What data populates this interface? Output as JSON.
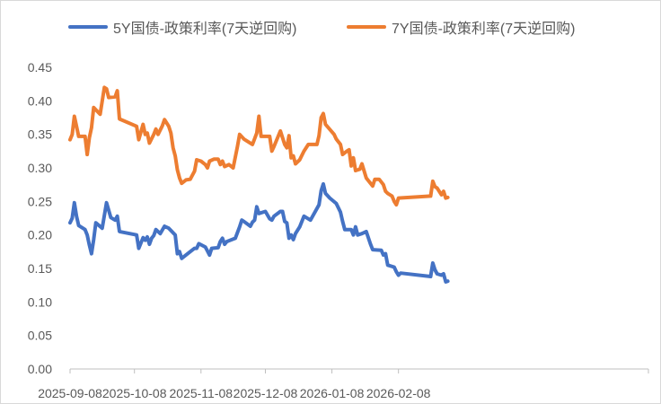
{
  "chart_data": {
    "type": "line",
    "title": "",
    "xlabel": "",
    "ylabel": "",
    "ylim": [
      0,
      0.45
    ],
    "y_ticks": [
      "0.00",
      "0.05",
      "0.10",
      "0.15",
      "0.20",
      "0.25",
      "0.30",
      "0.35",
      "0.40",
      "0.45"
    ],
    "x_ticks": [
      "2025-09-08",
      "2025-10-08",
      "2025-11-08",
      "2025-12-08",
      "2026-01-08",
      "2026-02-08"
    ],
    "xlim": [
      "2025-09-08",
      "2026-03-03"
    ],
    "grid": false,
    "legend_position": "top",
    "series": [
      {
        "name": "5Y国债-政策利率(7天逆回购)",
        "color": "#4472c4",
        "points": [
          [
            "2025-09-08",
            0.218
          ],
          [
            "2025-09-09",
            0.225
          ],
          [
            "2025-09-10",
            0.248
          ],
          [
            "2025-09-11",
            0.228
          ],
          [
            "2025-09-12",
            0.214
          ],
          [
            "2025-09-15",
            0.208
          ],
          [
            "2025-09-16",
            0.2
          ],
          [
            "2025-09-17",
            0.185
          ],
          [
            "2025-09-18",
            0.172
          ],
          [
            "2025-09-19",
            0.193
          ],
          [
            "2025-09-20",
            0.218
          ],
          [
            "2025-09-23",
            0.21
          ],
          [
            "2025-09-25",
            0.248
          ],
          [
            "2025-09-27",
            0.226
          ],
          [
            "2025-09-29",
            0.222
          ],
          [
            "2025-09-30",
            0.228
          ],
          [
            "2025-10-01",
            0.205
          ],
          [
            "2025-10-09",
            0.2
          ],
          [
            "2025-10-10",
            0.18
          ],
          [
            "2025-10-12",
            0.196
          ],
          [
            "2025-10-13",
            0.192
          ],
          [
            "2025-10-14",
            0.197
          ],
          [
            "2025-10-15",
            0.186
          ],
          [
            "2025-10-16",
            0.195
          ],
          [
            "2025-10-17",
            0.199
          ],
          [
            "2025-10-18",
            0.208
          ],
          [
            "2025-10-20",
            0.202
          ],
          [
            "2025-10-22",
            0.213
          ],
          [
            "2025-10-24",
            0.21
          ],
          [
            "2025-10-27",
            0.2
          ],
          [
            "2025-10-28",
            0.172
          ],
          [
            "2025-10-29",
            0.175
          ],
          [
            "2025-10-30",
            0.165
          ],
          [
            "2025-11-03",
            0.175
          ],
          [
            "2025-11-05",
            0.18
          ],
          [
            "2025-11-06",
            0.18
          ],
          [
            "2025-11-07",
            0.187
          ],
          [
            "2025-11-10",
            0.182
          ],
          [
            "2025-11-11",
            0.176
          ],
          [
            "2025-11-12",
            0.17
          ],
          [
            "2025-11-13",
            0.18
          ],
          [
            "2025-11-16",
            0.181
          ],
          [
            "2025-11-17",
            0.19
          ],
          [
            "2025-11-18",
            0.195
          ],
          [
            "2025-11-19",
            0.186
          ],
          [
            "2025-11-20",
            0.19
          ],
          [
            "2025-11-24",
            0.195
          ],
          [
            "2025-11-26",
            0.212
          ],
          [
            "2025-11-27",
            0.222
          ],
          [
            "2025-11-28",
            0.22
          ],
          [
            "2025-12-01",
            0.213
          ],
          [
            "2025-12-02",
            0.219
          ],
          [
            "2025-12-03",
            0.222
          ],
          [
            "2025-12-04",
            0.242
          ],
          [
            "2025-12-05",
            0.232
          ],
          [
            "2025-12-08",
            0.235
          ],
          [
            "2025-12-10",
            0.224
          ],
          [
            "2025-12-11",
            0.222
          ],
          [
            "2025-12-12",
            0.228
          ],
          [
            "2025-12-15",
            0.235
          ],
          [
            "2025-12-16",
            0.235
          ],
          [
            "2025-12-17",
            0.22
          ],
          [
            "2025-12-18",
            0.218
          ],
          [
            "2025-12-19",
            0.195
          ],
          [
            "2025-12-20",
            0.2
          ],
          [
            "2025-12-21",
            0.193
          ],
          [
            "2025-12-22",
            0.202
          ],
          [
            "2025-12-24",
            0.212
          ],
          [
            "2025-12-26",
            0.228
          ],
          [
            "2025-12-29",
            0.222
          ],
          [
            "2026-01-02",
            0.245
          ],
          [
            "2026-01-03",
            0.266
          ],
          [
            "2026-01-04",
            0.276
          ],
          [
            "2026-01-05",
            0.262
          ],
          [
            "2026-01-07",
            0.255
          ],
          [
            "2026-01-10",
            0.247
          ],
          [
            "2026-01-12",
            0.234
          ],
          [
            "2026-01-13",
            0.22
          ],
          [
            "2026-01-14",
            0.208
          ],
          [
            "2026-01-17",
            0.208
          ],
          [
            "2026-01-18",
            0.2
          ],
          [
            "2026-01-19",
            0.212
          ],
          [
            "2026-01-20",
            0.2
          ],
          [
            "2026-01-22",
            0.202
          ],
          [
            "2026-01-24",
            0.205
          ],
          [
            "2026-01-26",
            0.186
          ],
          [
            "2026-01-27",
            0.178
          ],
          [
            "2026-01-31",
            0.177
          ],
          [
            "2026-02-01",
            0.17
          ],
          [
            "2026-02-02",
            0.172
          ],
          [
            "2026-02-03",
            0.155
          ],
          [
            "2026-02-06",
            0.152
          ],
          [
            "2026-02-07",
            0.145
          ],
          [
            "2026-02-08",
            0.14
          ],
          [
            "2026-02-09",
            0.143
          ],
          [
            "2026-02-23",
            0.138
          ],
          [
            "2026-02-24",
            0.158
          ],
          [
            "2026-02-25",
            0.148
          ],
          [
            "2026-02-26",
            0.142
          ],
          [
            "2026-02-28",
            0.14
          ],
          [
            "2026-03-01",
            0.142
          ],
          [
            "2026-03-02",
            0.13
          ],
          [
            "2026-03-03",
            0.131
          ]
        ]
      },
      {
        "name": "7Y国债-政策利率(7天逆回购)",
        "color": "#ed7d31",
        "points": [
          [
            "2025-09-08",
            0.342
          ],
          [
            "2025-09-09",
            0.35
          ],
          [
            "2025-09-10",
            0.377
          ],
          [
            "2025-09-11",
            0.362
          ],
          [
            "2025-09-12",
            0.347
          ],
          [
            "2025-09-15",
            0.347
          ],
          [
            "2025-09-16",
            0.32
          ],
          [
            "2025-09-17",
            0.345
          ],
          [
            "2025-09-18",
            0.36
          ],
          [
            "2025-09-19",
            0.39
          ],
          [
            "2025-09-22",
            0.38
          ],
          [
            "2025-09-24",
            0.42
          ],
          [
            "2025-09-25",
            0.418
          ],
          [
            "2025-09-26",
            0.405
          ],
          [
            "2025-09-29",
            0.406
          ],
          [
            "2025-09-30",
            0.415
          ],
          [
            "2025-10-01",
            0.373
          ],
          [
            "2025-10-09",
            0.362
          ],
          [
            "2025-10-10",
            0.342
          ],
          [
            "2025-10-12",
            0.365
          ],
          [
            "2025-10-13",
            0.35
          ],
          [
            "2025-10-14",
            0.352
          ],
          [
            "2025-10-15",
            0.337
          ],
          [
            "2025-10-17",
            0.35
          ],
          [
            "2025-10-18",
            0.358
          ],
          [
            "2025-10-19",
            0.35
          ],
          [
            "2025-10-21",
            0.363
          ],
          [
            "2025-10-22",
            0.372
          ],
          [
            "2025-10-24",
            0.362
          ],
          [
            "2025-10-25",
            0.352
          ],
          [
            "2025-10-26",
            0.33
          ],
          [
            "2025-10-27",
            0.318
          ],
          [
            "2025-10-28",
            0.297
          ],
          [
            "2025-10-29",
            0.285
          ],
          [
            "2025-10-30",
            0.277
          ],
          [
            "2025-11-01",
            0.282
          ],
          [
            "2025-11-03",
            0.283
          ],
          [
            "2025-11-05",
            0.295
          ],
          [
            "2025-11-06",
            0.312
          ],
          [
            "2025-11-08",
            0.31
          ],
          [
            "2025-11-10",
            0.305
          ],
          [
            "2025-11-11",
            0.3
          ],
          [
            "2025-11-12",
            0.31
          ],
          [
            "2025-11-14",
            0.313
          ],
          [
            "2025-11-16",
            0.313
          ],
          [
            "2025-11-17",
            0.305
          ],
          [
            "2025-11-18",
            0.31
          ],
          [
            "2025-11-19",
            0.302
          ],
          [
            "2025-11-21",
            0.305
          ],
          [
            "2025-11-23",
            0.3
          ],
          [
            "2025-11-25",
            0.332
          ],
          [
            "2025-11-26",
            0.35
          ],
          [
            "2025-11-28",
            0.343
          ],
          [
            "2025-12-02",
            0.335
          ],
          [
            "2025-12-04",
            0.352
          ],
          [
            "2025-12-05",
            0.377
          ],
          [
            "2025-12-06",
            0.347
          ],
          [
            "2025-12-10",
            0.347
          ],
          [
            "2025-12-11",
            0.325
          ],
          [
            "2025-12-12",
            0.332
          ],
          [
            "2025-12-15",
            0.355
          ],
          [
            "2025-12-17",
            0.335
          ],
          [
            "2025-12-18",
            0.33
          ],
          [
            "2025-12-19",
            0.348
          ],
          [
            "2025-12-20",
            0.315
          ],
          [
            "2025-12-21",
            0.318
          ],
          [
            "2025-12-22",
            0.306
          ],
          [
            "2025-12-24",
            0.312
          ],
          [
            "2025-12-26",
            0.325
          ],
          [
            "2025-12-28",
            0.335
          ],
          [
            "2026-01-01",
            0.335
          ],
          [
            "2026-01-02",
            0.348
          ],
          [
            "2026-01-03",
            0.375
          ],
          [
            "2026-01-04",
            0.381
          ],
          [
            "2026-01-05",
            0.365
          ],
          [
            "2026-01-09",
            0.35
          ],
          [
            "2026-01-10",
            0.343
          ],
          [
            "2026-01-12",
            0.335
          ],
          [
            "2026-01-13",
            0.32
          ],
          [
            "2026-01-15",
            0.325
          ],
          [
            "2026-01-16",
            0.327
          ],
          [
            "2026-01-17",
            0.303
          ],
          [
            "2026-01-18",
            0.315
          ],
          [
            "2026-01-19",
            0.296
          ],
          [
            "2026-01-21",
            0.298
          ],
          [
            "2026-01-22",
            0.306
          ],
          [
            "2026-01-24",
            0.285
          ],
          [
            "2026-01-27",
            0.273
          ],
          [
            "2026-01-28",
            0.283
          ],
          [
            "2026-01-30",
            0.283
          ],
          [
            "2026-02-01",
            0.275
          ],
          [
            "2026-02-02",
            0.265
          ],
          [
            "2026-02-03",
            0.262
          ],
          [
            "2026-02-05",
            0.258
          ],
          [
            "2026-02-06",
            0.25
          ],
          [
            "2026-02-07",
            0.245
          ],
          [
            "2026-02-08",
            0.255
          ],
          [
            "2026-02-23",
            0.258
          ],
          [
            "2026-02-24",
            0.28
          ],
          [
            "2026-02-25",
            0.272
          ],
          [
            "2026-02-26",
            0.27
          ],
          [
            "2026-02-28",
            0.26
          ],
          [
            "2026-03-01",
            0.265
          ],
          [
            "2026-03-02",
            0.255
          ],
          [
            "2026-03-03",
            0.256
          ]
        ]
      }
    ]
  }
}
